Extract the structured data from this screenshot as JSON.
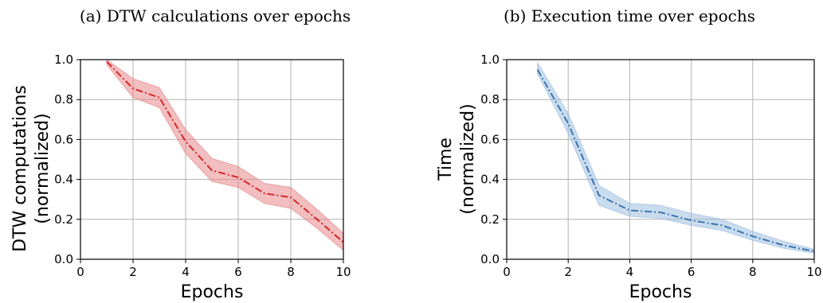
{
  "chart_data": [
    {
      "type": "line",
      "title": "(a) DTW calculations over epochs",
      "xlabel": "Epochs",
      "ylabel": [
        "DTW computations",
        "(normalized)"
      ],
      "xlim": [
        0,
        10
      ],
      "ylim": [
        0.0,
        1.0
      ],
      "xticks": [
        "0",
        "2",
        "4",
        "6",
        "8",
        "10"
      ],
      "yticks": [
        "0.0",
        "0.2",
        "0.4",
        "0.6",
        "0.8",
        "1.0"
      ],
      "grid": true,
      "line_style": "dash-dot",
      "color": "#d62728",
      "band_color": "#e8898a",
      "series": [
        {
          "x": [
            1,
            2,
            3,
            4,
            5,
            6,
            7,
            8,
            9,
            10
          ],
          "values": [
            0.99,
            0.855,
            0.81,
            0.59,
            0.445,
            0.41,
            0.33,
            0.31,
            0.2,
            0.085
          ],
          "lower": [
            0.975,
            0.81,
            0.76,
            0.53,
            0.39,
            0.36,
            0.28,
            0.255,
            0.155,
            0.045
          ],
          "upper": [
            1.0,
            0.905,
            0.86,
            0.65,
            0.505,
            0.465,
            0.38,
            0.36,
            0.25,
            0.13
          ]
        }
      ]
    },
    {
      "type": "line",
      "title": "(b) Execution time over epochs",
      "xlabel": "Epochs",
      "ylabel": [
        "Time",
        "(normalized)"
      ],
      "xlim": [
        0,
        10
      ],
      "ylim": [
        0.0,
        1.0
      ],
      "xticks": [
        "0",
        "2",
        "4",
        "6",
        "8",
        "10"
      ],
      "yticks": [
        "0.0",
        "0.2",
        "0.4",
        "0.6",
        "0.8",
        "1.0"
      ],
      "grid": true,
      "line_style": "dash-dot",
      "color": "#3b75af",
      "band_color": "#9dbfe0",
      "series": [
        {
          "x": [
            1,
            2,
            3,
            4,
            5,
            6,
            7,
            8,
            9,
            10
          ],
          "values": [
            0.95,
            0.68,
            0.32,
            0.245,
            0.235,
            0.195,
            0.17,
            0.115,
            0.07,
            0.04
          ],
          "lower": [
            0.93,
            0.63,
            0.27,
            0.215,
            0.205,
            0.17,
            0.145,
            0.095,
            0.055,
            0.03
          ],
          "upper": [
            0.985,
            0.73,
            0.37,
            0.28,
            0.27,
            0.23,
            0.2,
            0.14,
            0.09,
            0.05
          ]
        }
      ]
    }
  ]
}
